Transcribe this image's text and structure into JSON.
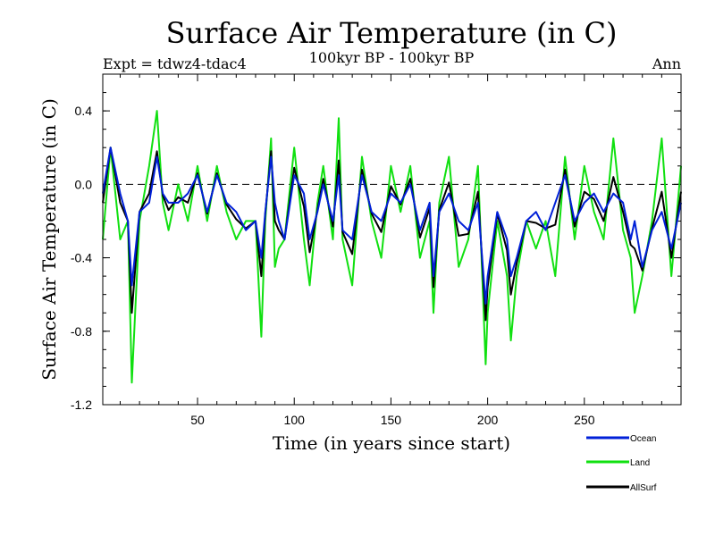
{
  "chart_data": {
    "type": "line",
    "title": "Surface Air Temperature (in C)",
    "subtitle_left": "Expt = tdwz4-tdac4",
    "subtitle_center": "100kyr BP - 100kyr BP",
    "subtitle_right": "Ann",
    "xlabel": "Time (in years since start)",
    "ylabel": "Surface Air Temperature (in C)",
    "xlim": [
      1,
      300
    ],
    "ylim": [
      -1.2,
      0.6
    ],
    "x_ticks": [
      50,
      100,
      150,
      200,
      250
    ],
    "x_tick_labels": [
      "50",
      "100",
      "150",
      "200",
      "250"
    ],
    "y_ticks": [
      0.4,
      0.0,
      -0.4,
      -0.8,
      -1.2
    ],
    "y_tick_labels": [
      "0.4",
      "0.0",
      "-0.4",
      "-0.8",
      "-1.2"
    ],
    "reference_line": 0.0,
    "x": [
      1,
      5,
      10,
      14,
      16,
      20,
      25,
      29,
      32,
      35,
      40,
      45,
      50,
      55,
      60,
      65,
      70,
      75,
      80,
      83,
      85,
      88,
      90,
      92,
      95,
      100,
      105,
      108,
      112,
      115,
      120,
      123,
      125,
      130,
      135,
      140,
      145,
      150,
      155,
      160,
      165,
      170,
      172,
      175,
      180,
      185,
      190,
      195,
      199,
      200,
      205,
      210,
      212,
      215,
      220,
      225,
      230,
      235,
      240,
      245,
      250,
      255,
      260,
      265,
      270,
      274,
      276,
      280,
      285,
      290,
      295,
      300
    ],
    "series": [
      {
        "name": "Ocean",
        "color": "#0020d8",
        "values": [
          -0.05,
          0.2,
          -0.05,
          -0.2,
          -0.55,
          -0.15,
          -0.1,
          0.15,
          -0.05,
          -0.1,
          -0.1,
          -0.05,
          0.05,
          -0.15,
          0.05,
          -0.1,
          -0.15,
          -0.25,
          -0.2,
          -0.4,
          -0.15,
          0.15,
          -0.1,
          -0.2,
          -0.3,
          0.05,
          -0.05,
          -0.3,
          -0.15,
          0.0,
          -0.2,
          0.05,
          -0.25,
          -0.3,
          0.05,
          -0.15,
          -0.2,
          -0.05,
          -0.1,
          0.0,
          -0.25,
          -0.1,
          -0.5,
          -0.15,
          -0.05,
          -0.2,
          -0.25,
          -0.1,
          -0.65,
          -0.5,
          -0.15,
          -0.3,
          -0.5,
          -0.4,
          -0.2,
          -0.15,
          -0.25,
          -0.1,
          0.05,
          -0.2,
          -0.1,
          -0.05,
          -0.15,
          -0.05,
          -0.1,
          -0.3,
          -0.2,
          -0.45,
          -0.25,
          -0.15,
          -0.35,
          -0.1
        ]
      },
      {
        "name": "Land",
        "color": "#10e010",
        "values": [
          -0.3,
          0.2,
          -0.3,
          -0.2,
          -1.08,
          -0.2,
          0.1,
          0.4,
          -0.1,
          -0.25,
          0.0,
          -0.2,
          0.1,
          -0.2,
          0.1,
          -0.15,
          -0.3,
          -0.2,
          -0.2,
          -0.83,
          -0.2,
          0.25,
          -0.45,
          -0.35,
          -0.3,
          0.2,
          -0.3,
          -0.55,
          -0.1,
          0.1,
          -0.3,
          0.36,
          -0.3,
          -0.55,
          0.15,
          -0.2,
          -0.4,
          0.1,
          -0.15,
          0.1,
          -0.4,
          -0.2,
          -0.7,
          -0.1,
          0.15,
          -0.45,
          -0.3,
          0.1,
          -0.98,
          -0.7,
          -0.2,
          -0.5,
          -0.85,
          -0.5,
          -0.2,
          -0.35,
          -0.2,
          -0.5,
          0.15,
          -0.3,
          0.1,
          -0.15,
          -0.3,
          0.25,
          -0.25,
          -0.4,
          -0.7,
          -0.5,
          -0.2,
          0.25,
          -0.5,
          0.1
        ]
      },
      {
        "name": "AllSurf",
        "color": "#000000",
        "values": [
          -0.1,
          0.2,
          -0.1,
          -0.2,
          -0.7,
          -0.15,
          -0.05,
          0.18,
          -0.06,
          -0.14,
          -0.07,
          -0.1,
          0.06,
          -0.16,
          0.06,
          -0.11,
          -0.19,
          -0.24,
          -0.2,
          -0.5,
          -0.16,
          0.18,
          -0.2,
          -0.25,
          -0.3,
          0.09,
          -0.12,
          -0.37,
          -0.14,
          0.03,
          -0.23,
          0.13,
          -0.26,
          -0.38,
          0.08,
          -0.16,
          -0.26,
          -0.01,
          -0.11,
          0.03,
          -0.29,
          -0.13,
          -0.56,
          -0.14,
          0.01,
          -0.28,
          -0.27,
          -0.04,
          -0.74,
          -0.56,
          -0.16,
          -0.36,
          -0.6,
          -0.43,
          -0.2,
          -0.21,
          -0.24,
          -0.22,
          0.08,
          -0.23,
          -0.04,
          -0.08,
          -0.2,
          0.04,
          -0.15,
          -0.33,
          -0.35,
          -0.47,
          -0.24,
          -0.04,
          -0.4,
          -0.04
        ]
      }
    ]
  },
  "legend": [
    {
      "label": "Ocean",
      "color": "#0020d8"
    },
    {
      "label": "Land",
      "color": "#10e010"
    },
    {
      "label": "AllSurf",
      "color": "#000000"
    }
  ]
}
